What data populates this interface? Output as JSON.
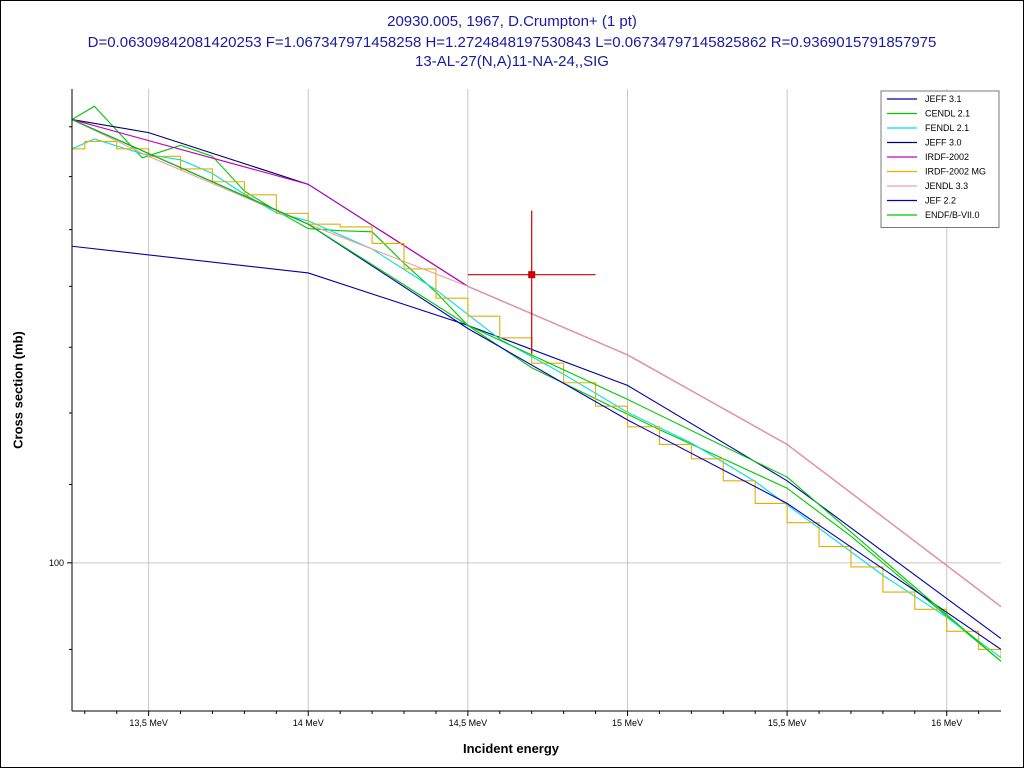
{
  "chart_data": {
    "type": "line",
    "title": "20930.005, 1967, D.Crumpton+ (1 pt)",
    "subtitle": "D=0.06309842081420253 F=1.067347971458258 H=1.2724848197530843 L=0.06734797145825862 R=0.9369015791857975",
    "subtitle2": "13-AL-27(N,A)11-NA-24,,SIG",
    "xlabel": "Incident energy",
    "ylabel": "Cross section (mb)",
    "xlim": [
      13.26,
      16.17
    ],
    "ylim": [
      83.5,
      178
    ],
    "yscale": "log",
    "grid": true,
    "legend_position": "top-right",
    "x_ticks": [
      {
        "value": 13.5,
        "label": "13,5 MeV"
      },
      {
        "value": 14.0,
        "label": "14 MeV"
      },
      {
        "value": 14.5,
        "label": "14,5 MeV"
      },
      {
        "value": 15.0,
        "label": "15 MeV"
      },
      {
        "value": 15.5,
        "label": "15,5 MeV"
      },
      {
        "value": 16.0,
        "label": "16 MeV"
      }
    ],
    "y_ticks": [
      {
        "value": 100,
        "label": "100"
      }
    ],
    "series": [
      {
        "name": "JEFF 3.1",
        "color": "#0000a8",
        "x": [
          13.26,
          14.0,
          14.5,
          15.0,
          15.5,
          16.17
        ],
        "y": [
          147,
          142.3,
          133.5,
          124.1,
          110.5,
          91.2
        ]
      },
      {
        "name": "CENDL 2.1",
        "color": "#00c800",
        "x": [
          13.26,
          13.33,
          13.48,
          13.6,
          13.7,
          13.8,
          13.9,
          14.0,
          14.1,
          14.2,
          14.3,
          14.4,
          14.5,
          14.7,
          14.9,
          15.1,
          15.3,
          15.5,
          15.7,
          15.9,
          16.17
        ],
        "y": [
          171.5,
          174.3,
          163.7,
          166.2,
          164.0,
          157.2,
          153.5,
          150.2,
          149.8,
          149.6,
          144.0,
          139.0,
          133.5,
          126.8,
          122.1,
          117.6,
          113.5,
          109.5,
          103.3,
          96.8,
          88.7
        ]
      },
      {
        "name": "FENDL 2.1",
        "color": "#00e0e0",
        "x": [
          13.26,
          13.33,
          13.48,
          13.6,
          13.7,
          13.8,
          13.9,
          14.0,
          14.2,
          14.4,
          14.6,
          14.8,
          15.0,
          15.2,
          15.4,
          15.6,
          15.8,
          16.0,
          16.17
        ],
        "y": [
          165.5,
          167.5,
          164.5,
          163.3,
          160.6,
          156.6,
          153.1,
          151.6,
          146.5,
          139.4,
          131.3,
          125.8,
          120.1,
          115.7,
          110.4,
          104.3,
          98.5,
          93.6,
          89.1
        ]
      },
      {
        "name": "JEFF 3.0",
        "color": "#000060",
        "x": [
          13.26,
          13.5,
          14.0,
          14.5,
          15.0,
          15.5,
          16.17
        ],
        "y": [
          171.5,
          168.8,
          158.5,
          140.0,
          128.8,
          115.5,
          94.8
        ]
      },
      {
        "name": "IRDF-2002",
        "color": "#c000c0",
        "x": [
          13.26,
          14.0,
          14.5,
          15.0,
          15.5,
          16.17
        ],
        "y": [
          171.5,
          158.5,
          140.0,
          128.8,
          115.5,
          94.8
        ]
      },
      {
        "name": "IRDF-2002 MG",
        "color": "#e0b000",
        "type": "step",
        "x": [
          13.26,
          13.3,
          13.4,
          13.5,
          13.6,
          13.7,
          13.8,
          13.9,
          14.0,
          14.1,
          14.2,
          14.3,
          14.4,
          14.5,
          14.6,
          14.7,
          14.8,
          14.9,
          15.0,
          15.1,
          15.2,
          15.3,
          15.4,
          15.5,
          15.6,
          15.7,
          15.8,
          15.9,
          16.0,
          16.1,
          16.17
        ],
        "y": [
          165.5,
          167.0,
          165.5,
          164.0,
          161.5,
          159.0,
          156.5,
          153.0,
          151.0,
          150.5,
          147.5,
          143.0,
          138.0,
          135.0,
          131.5,
          127.5,
          124.5,
          121.0,
          118.0,
          115.5,
          113.5,
          110.5,
          107.5,
          105.0,
          102.0,
          99.5,
          96.5,
          94.5,
          92.0,
          90.0,
          89.0
        ]
      },
      {
        "name": "JENDL 3.3",
        "color": "#f0a0a0",
        "x": [
          13.26,
          13.5,
          14.0,
          14.5,
          15.0,
          15.5,
          16.17
        ],
        "y": [
          171.5,
          164.0,
          151.0,
          140.0,
          128.8,
          115.5,
          94.8
        ]
      },
      {
        "name": "JEF 2.2",
        "color": "#0000c0",
        "x": [
          13.26,
          14.0,
          14.5,
          15.0,
          15.5,
          16.17
        ],
        "y": [
          171.5,
          151.0,
          133.0,
          119.0,
          107.5,
          90.0
        ]
      },
      {
        "name": "ENDF/B-VII.0",
        "color": "#00c800",
        "x": [
          13.26,
          14.0,
          14.5,
          15.0,
          15.5,
          16.17
        ],
        "y": [
          171.5,
          151.0,
          133.5,
          122.0,
          111.0,
          88.7
        ]
      }
    ],
    "experimental": {
      "color": "#cc0000",
      "x": 14.7,
      "y": 142.0,
      "x_err": [
        14.5,
        14.9
      ],
      "y_err": [
        129.0,
        153.5
      ]
    }
  }
}
